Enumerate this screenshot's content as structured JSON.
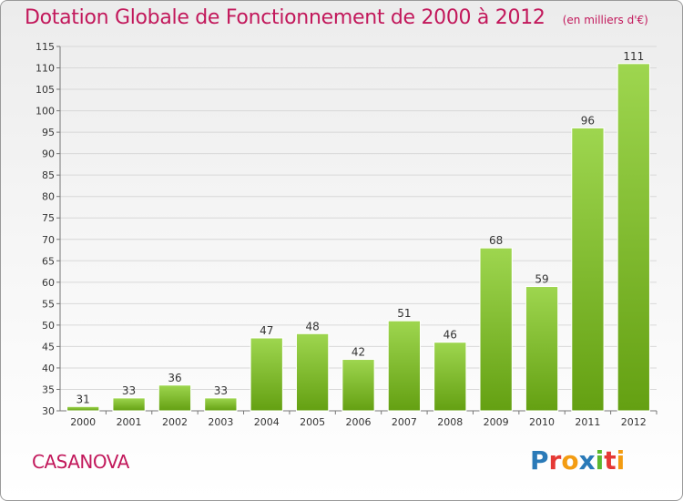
{
  "title": "Dotation Globale de Fonctionnement de 2000 à 2012",
  "subtitle": "(en milliers d'€)",
  "commune": "CASANOVA",
  "logo": {
    "text": "Proxiti",
    "colors": [
      "#2a7ab8",
      "#e53935",
      "#f39c12",
      "#2a7ab8",
      "#5cb82e",
      "#e53935",
      "#f39c12"
    ]
  },
  "colors": {
    "title": "#c2185b",
    "bar_top": "#9ed64f",
    "bar_bottom": "#64a012"
  },
  "chart_data": {
    "type": "bar",
    "categories": [
      "2000",
      "2001",
      "2002",
      "2003",
      "2004",
      "2005",
      "2006",
      "2007",
      "2008",
      "2009",
      "2010",
      "2011",
      "2012"
    ],
    "values": [
      31,
      33,
      36,
      33,
      47,
      48,
      42,
      51,
      46,
      68,
      59,
      96,
      111
    ],
    "ylim": [
      30,
      115
    ],
    "yticks": [
      30,
      35,
      40,
      45,
      50,
      55,
      60,
      65,
      70,
      75,
      80,
      85,
      90,
      95,
      100,
      105,
      110,
      115
    ],
    "grid": true
  }
}
